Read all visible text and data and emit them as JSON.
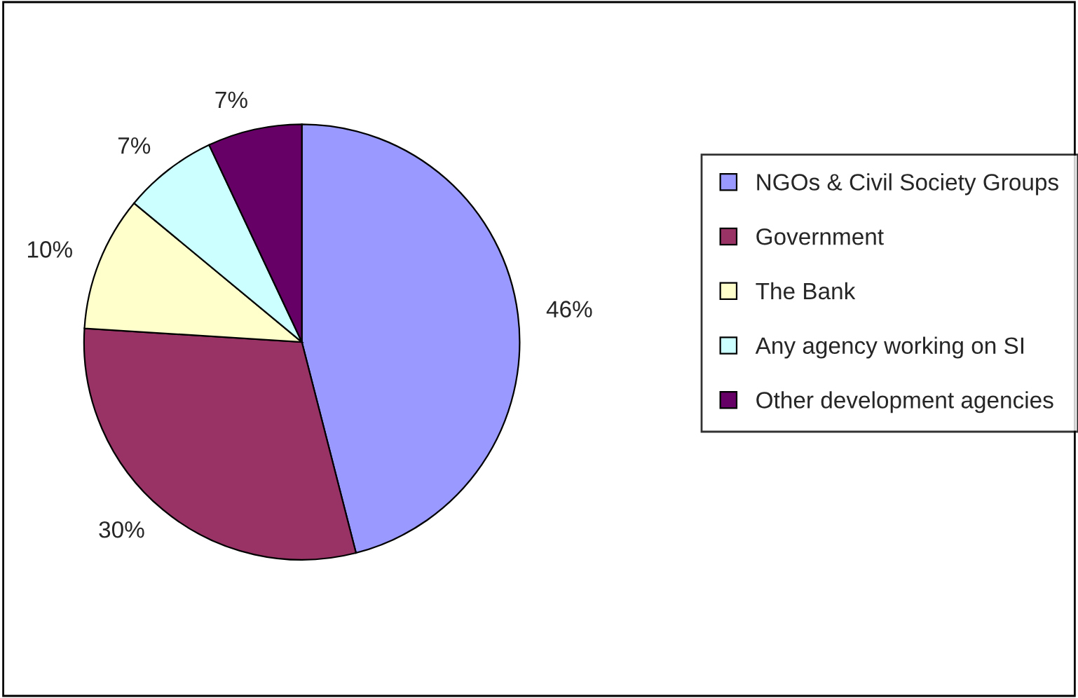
{
  "chart_data": {
    "type": "pie",
    "categories": [
      "NGOs & Civil Society Groups",
      "Government",
      "The Bank",
      "Any agency working on SI",
      "Other development agencies"
    ],
    "values": [
      46,
      30,
      10,
      7,
      7
    ],
    "value_labels": [
      "46%",
      "30%",
      "10%",
      "7%",
      "7%"
    ],
    "colors": [
      "#9999ff",
      "#993366",
      "#ffffcc",
      "#ccffff",
      "#660066"
    ],
    "legend": "right"
  }
}
